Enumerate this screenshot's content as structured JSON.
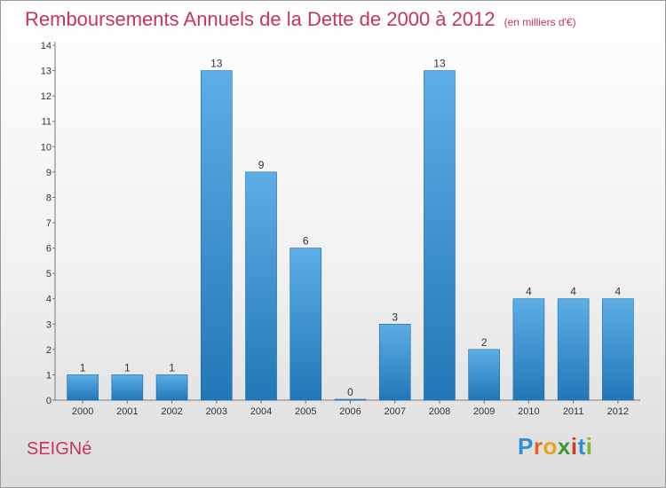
{
  "title": "Remboursements Annuels de la Dette de 2000 à 2012",
  "unit": "(en milliers d'€)",
  "commune": "SEIGNé",
  "brand": {
    "letters": [
      "P",
      "r",
      "o",
      "x",
      "i",
      "t",
      "i"
    ],
    "colors": [
      "#2f8fd0",
      "#e9601d",
      "#e9a31d",
      "#3a9b3a",
      "#d8352a",
      "#2f8fd0",
      "#7bb82e"
    ]
  },
  "colors": {
    "bar_light": "#5daee6",
    "bar_dark": "#2277b8",
    "title": "#c8345c"
  },
  "chart_data": {
    "type": "bar",
    "categories": [
      "2000",
      "2001",
      "2002",
      "2003",
      "2004",
      "2005",
      "2006",
      "2007",
      "2008",
      "2009",
      "2010",
      "2011",
      "2012"
    ],
    "values": [
      1,
      1,
      1,
      13,
      9,
      6,
      0,
      3,
      13,
      2,
      4,
      4,
      4
    ],
    "labels": [
      "1",
      "1",
      "1",
      "13",
      "9",
      "6",
      "0",
      "3",
      "13",
      "2",
      "4",
      "4",
      "4"
    ],
    "yticks": [
      0,
      1,
      2,
      3,
      4,
      5,
      6,
      7,
      8,
      9,
      10,
      11,
      12,
      13,
      14
    ],
    "ylim": [
      0,
      14
    ],
    "grid": false,
    "title": "Remboursements Annuels de la Dette de 2000 à 2012"
  }
}
